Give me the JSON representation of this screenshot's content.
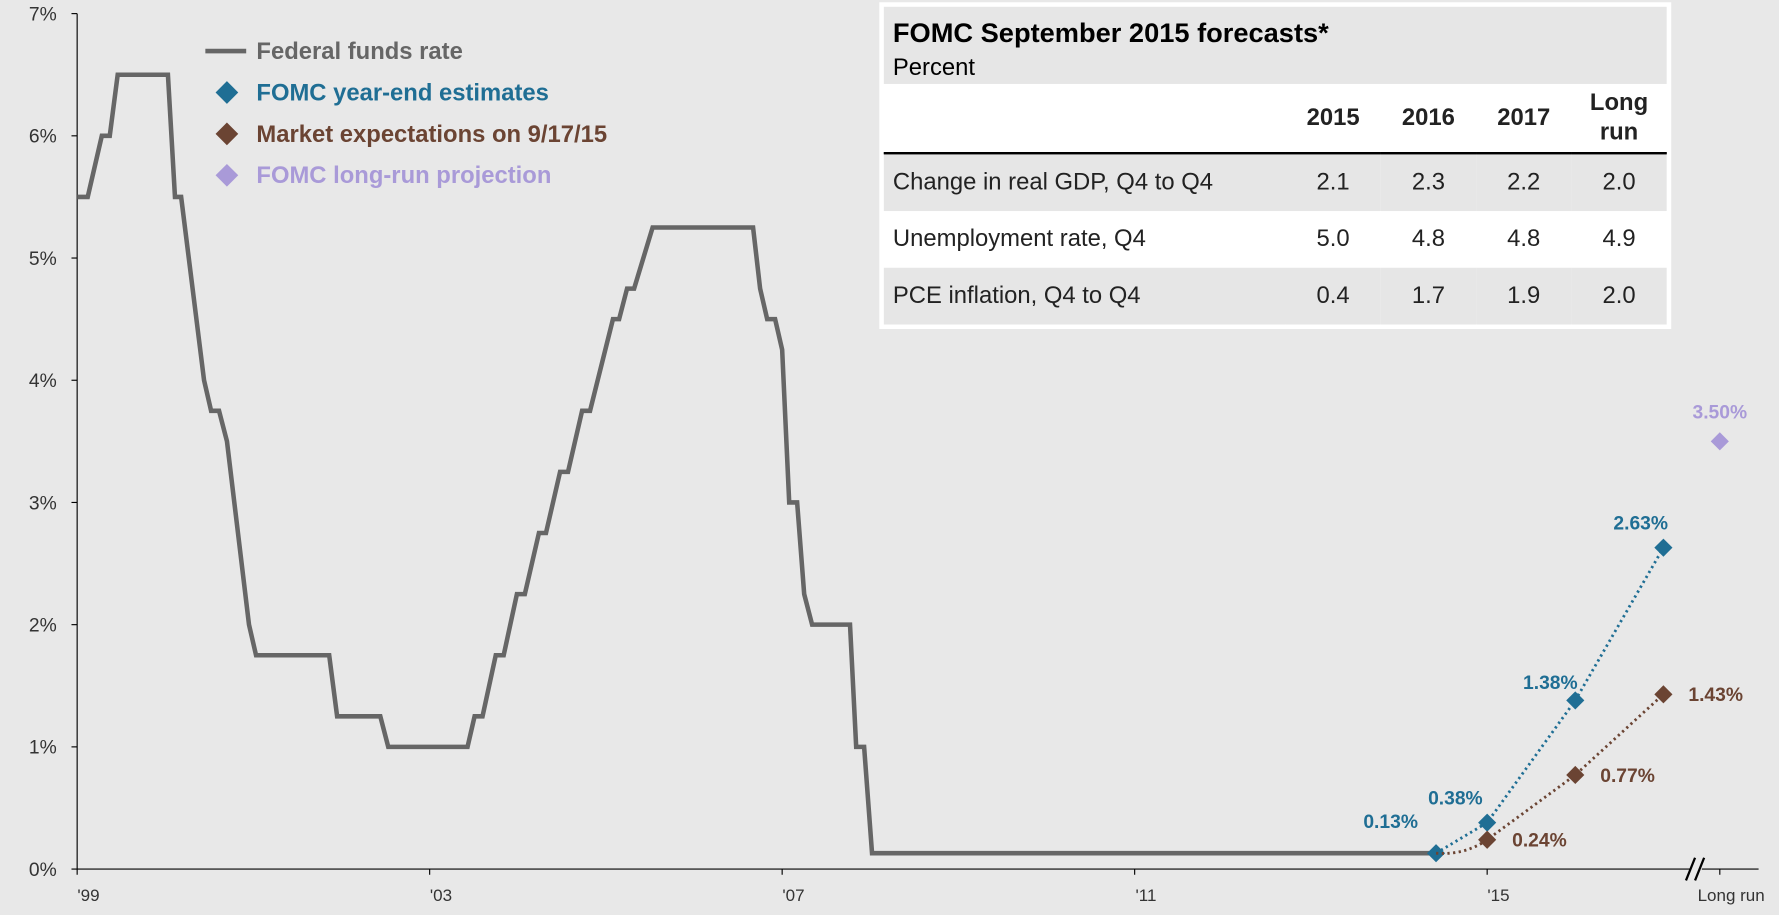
{
  "chart_data": {
    "type": "line",
    "x_tick_format": "year",
    "xlim": [
      1999,
      2018.08
    ],
    "xticks": [
      {
        "value": 1999,
        "label": "'99"
      },
      {
        "value": 2003,
        "label": "'03"
      },
      {
        "value": 2007,
        "label": "'07"
      },
      {
        "value": 2011,
        "label": "'11"
      },
      {
        "value": 2015,
        "label": "'15"
      },
      {
        "value": 2017.64,
        "label": "Long run"
      }
    ],
    "ylim": [
      0,
      7
    ],
    "yticks": [
      {
        "value": 0,
        "label": "0%"
      },
      {
        "value": 1,
        "label": "1%"
      },
      {
        "value": 2,
        "label": "2%"
      },
      {
        "value": 3,
        "label": "3%"
      },
      {
        "value": 4,
        "label": "4%"
      },
      {
        "value": 5,
        "label": "5%"
      },
      {
        "value": 6,
        "label": "6%"
      },
      {
        "value": 7,
        "label": "7%"
      }
    ],
    "series": [
      {
        "name": "Federal funds rate",
        "color": "#666666",
        "style": "solid",
        "x": [
          1999.0,
          1999.12,
          1999.28,
          1999.37,
          1999.46,
          2000.03,
          2000.11,
          2000.18,
          2000.44,
          2000.52,
          2000.61,
          2000.7,
          2000.95,
          2001.03,
          2001.86,
          2001.95,
          2002.44,
          2002.53,
          2003.43,
          2003.51,
          2003.6,
          2003.75,
          2003.84,
          2003.99,
          2004.08,
          2004.24,
          2004.32,
          2004.48,
          2004.57,
          2004.73,
          2004.82,
          2005.08,
          2005.15,
          2005.24,
          2005.32,
          2005.53,
          2006.67,
          2006.75,
          2006.83,
          2006.92,
          2007.0,
          2007.08,
          2007.17,
          2007.25,
          2007.34,
          2007.77,
          2007.84,
          2007.93,
          2008.02,
          2014.42
        ],
        "values": [
          5.5,
          5.5,
          6.0,
          6.0,
          6.5,
          6.5,
          5.5,
          5.5,
          4.0,
          3.75,
          3.75,
          3.5,
          2.0,
          1.75,
          1.75,
          1.25,
          1.25,
          1.0,
          1.0,
          1.25,
          1.25,
          1.75,
          1.75,
          2.25,
          2.25,
          2.75,
          2.75,
          3.25,
          3.25,
          3.75,
          3.75,
          4.5,
          4.5,
          4.75,
          4.75,
          5.25,
          5.25,
          4.75,
          4.5,
          4.5,
          4.25,
          3.0,
          3.0,
          2.25,
          2.0,
          2.0,
          1.0,
          1.0,
          0.13,
          0.13
        ]
      },
      {
        "name": "FOMC year-end estimates",
        "color": "#1f6e94",
        "style": "dotted-markers",
        "x": [
          2014.42,
          2015.0,
          2016.0,
          2017.0
        ],
        "values": [
          0.13,
          0.38,
          1.38,
          2.63
        ],
        "value_labels": [
          "0.13%",
          "0.38%",
          "1.38%",
          "2.63%"
        ]
      },
      {
        "name": "Market expectations on 9/17/15",
        "color": "#6b4433",
        "style": "dotted-markers",
        "x": [
          2015.0,
          2016.0,
          2017.0
        ],
        "values": [
          0.24,
          0.77,
          1.43
        ],
        "value_labels": [
          "0.24%",
          "0.77%",
          "1.43%"
        ]
      },
      {
        "name": "FOMC long-run projection",
        "color": "#a99ad8",
        "style": "markers",
        "x": [
          2017.64
        ],
        "values": [
          3.5
        ],
        "value_labels": [
          "3.50%"
        ]
      }
    ]
  },
  "table": {
    "title": "FOMC September 2015 forecasts*",
    "subtitle": "Percent",
    "columns": [
      "2015",
      "2016",
      "2017",
      "Long run"
    ],
    "rows": [
      [
        "Change in real GDP, Q4 to Q4",
        "2.1",
        "2.3",
        "2.2",
        "2.0"
      ],
      [
        "Unemployment rate, Q4",
        "5.0",
        "4.8",
        "4.8",
        "4.9"
      ],
      [
        "PCE inflation, Q4 to Q4",
        "0.4",
        "1.7",
        "1.9",
        "2.0"
      ]
    ]
  }
}
